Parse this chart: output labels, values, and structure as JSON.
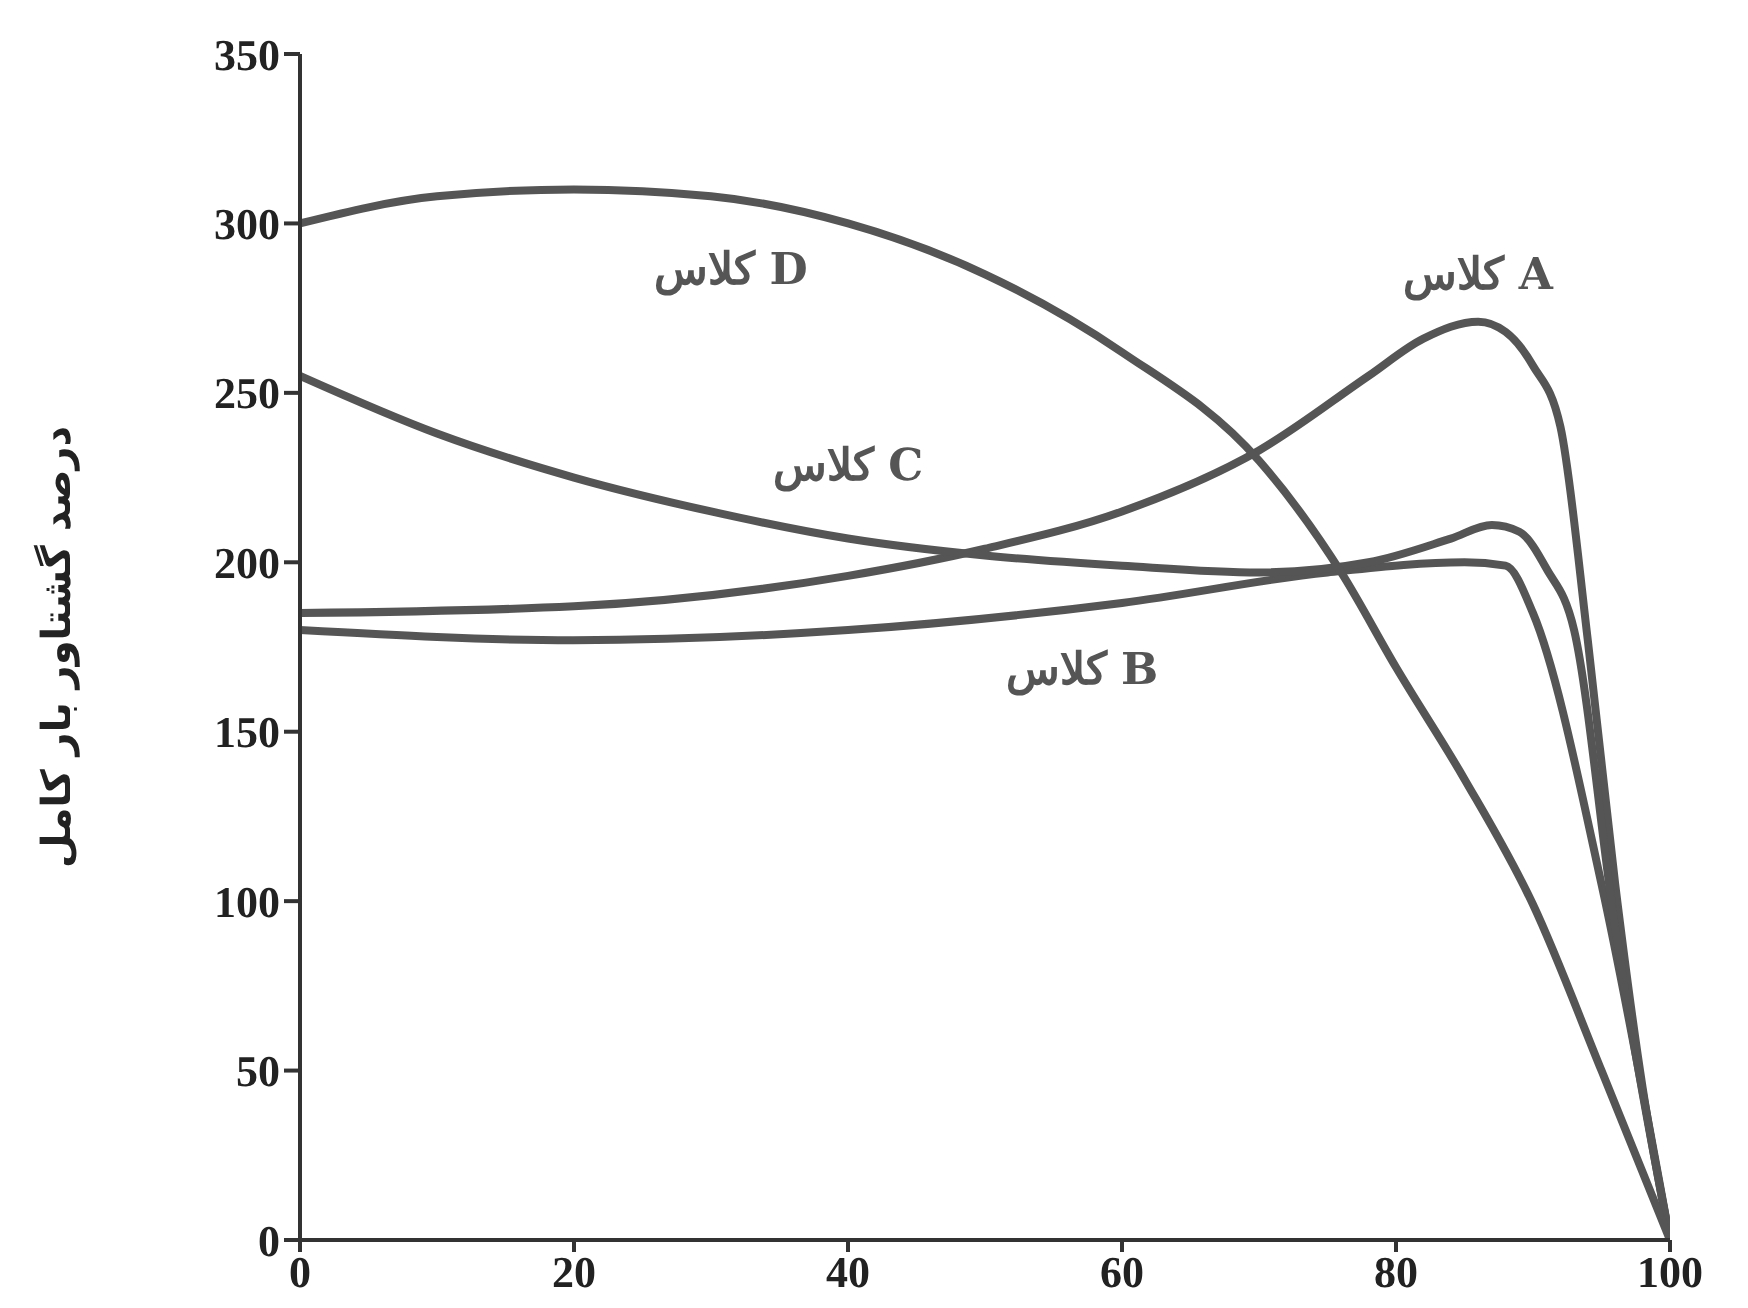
{
  "chart_data": {
    "type": "line",
    "ylabel": "درصد گشتاور بار کامل",
    "xlim": [
      0,
      100
    ],
    "xticks": [
      0,
      20,
      40,
      60,
      80,
      100
    ],
    "ylim": [
      0,
      350
    ],
    "yticks": [
      0,
      50,
      100,
      150,
      200,
      250,
      300,
      350
    ],
    "grid": false,
    "legend": false,
    "marker": "none",
    "line_style": "solid",
    "series": [
      {
        "name": "کلاس A",
        "color": "#555555",
        "x": [
          0,
          20,
          40,
          50,
          60,
          70,
          78,
          82,
          86,
          88,
          90,
          92,
          94,
          96,
          98,
          100
        ],
        "values": [
          185,
          187,
          196,
          204,
          215,
          233,
          255,
          266,
          271,
          268,
          258,
          240,
          177,
          105,
          45,
          0
        ]
      },
      {
        "name": "کلاس B",
        "color": "#555555",
        "x": [
          0,
          20,
          40,
          60,
          75,
          85,
          88,
          90,
          95,
          100
        ],
        "values": [
          180,
          177,
          180,
          188,
          197,
          200,
          199,
          185,
          105,
          0
        ]
      },
      {
        "name": "کلاس C",
        "color": "#555555",
        "x": [
          0,
          10,
          20,
          30,
          40,
          50,
          60,
          70,
          78,
          84,
          87,
          89,
          91,
          93,
          96,
          100
        ],
        "values": [
          255,
          238,
          225,
          215,
          207,
          202,
          199,
          197,
          200,
          207,
          211,
          209,
          198,
          180,
          92,
          0
        ]
      },
      {
        "name": "کلاس D",
        "color": "#555555",
        "x": [
          0,
          10,
          20,
          30,
          40,
          50,
          60,
          70,
          76,
          80,
          85,
          90,
          95,
          100
        ],
        "values": [
          300,
          308,
          310,
          308,
          300,
          285,
          262,
          230,
          197,
          169,
          136,
          99,
          50,
          0
        ]
      }
    ]
  }
}
